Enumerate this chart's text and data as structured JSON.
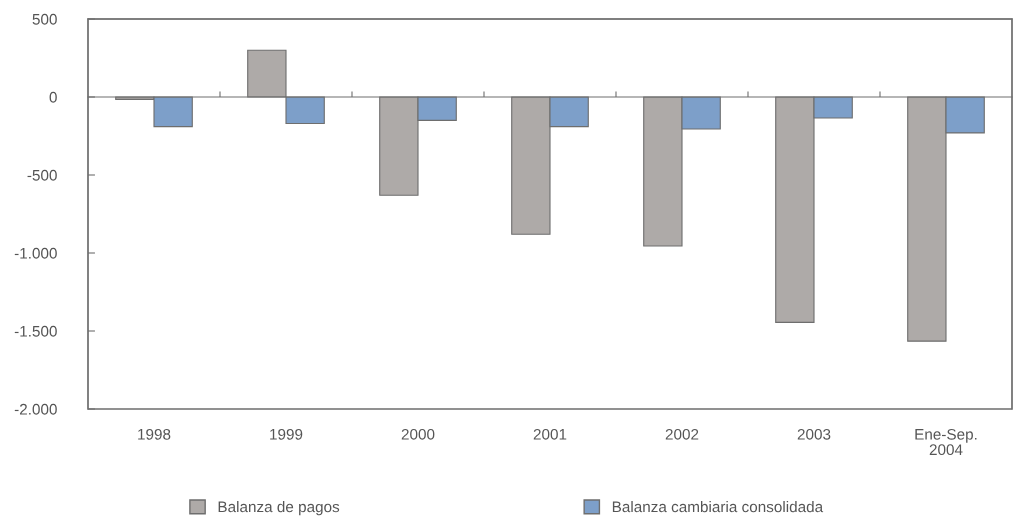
{
  "chart_data": {
    "type": "bar",
    "categories": [
      "1998",
      "1999",
      "2000",
      "2001",
      "2002",
      "2003",
      "Ene-Sep.\n2004"
    ],
    "series": [
      {
        "name": "Balanza de pagos",
        "color": "#aeaaa8",
        "values": [
          -15,
          300,
          -630,
          -880,
          -955,
          -1445,
          -1565
        ]
      },
      {
        "name": "Balanza cambiaria consolidada",
        "color": "#7d9fc9",
        "values": [
          -190,
          -170,
          -150,
          -190,
          -205,
          -135,
          -230
        ]
      }
    ],
    "ylim": [
      -2000,
      500
    ],
    "yticks": [
      {
        "value": 500,
        "label": "500"
      },
      {
        "value": 0,
        "label": "0"
      },
      {
        "value": -500,
        "label": "-500"
      },
      {
        "value": -1000,
        "label": "-1.000"
      },
      {
        "value": -1500,
        "label": "-1.500"
      },
      {
        "value": -2000,
        "label": "-2.000"
      }
    ],
    "legend": "bottom"
  }
}
